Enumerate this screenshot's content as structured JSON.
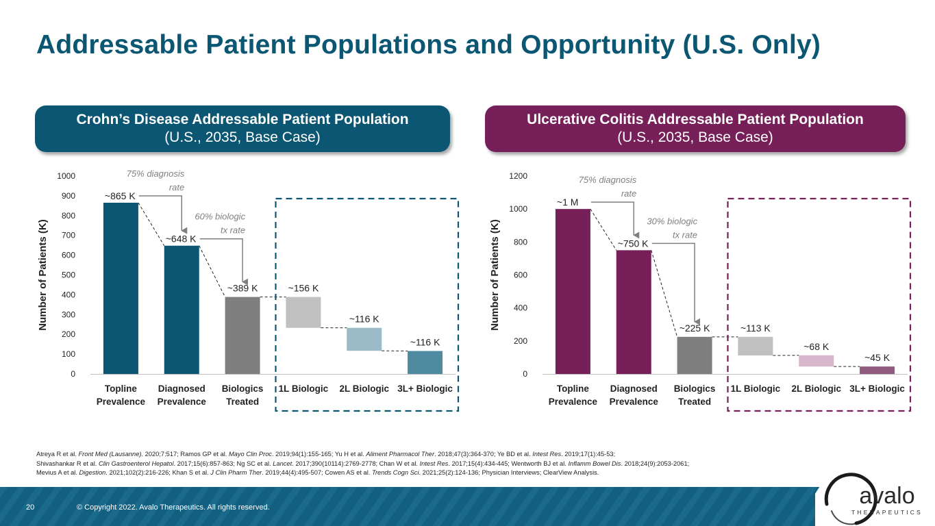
{
  "title": "Addressable Patient Populations and Opportunity (U.S. Only)",
  "colors": {
    "title": "#0b5773",
    "crohns": "#0b5773",
    "uc": "#761f58",
    "gray_dark": "#7f7f7f",
    "gray_light": "#c0c0c0",
    "annotation": "#7f7f7f",
    "footer": "#135f80"
  },
  "banners": {
    "crohns": {
      "title": "Crohn’s Disease Addressable Patient Population",
      "subtitle": "(U.S., 2035, Base Case)"
    },
    "uc": {
      "title": "Ulcerative Colitis Addressable Patient Population",
      "subtitle": "(U.S., 2035, Base Case)"
    }
  },
  "chart_data": [
    {
      "type": "bar",
      "subtype": "waterfall",
      "title": "Crohn’s Disease Addressable Patient Population (U.S., 2035, Base Case)",
      "ylabel": "Number of Patients (K)",
      "ylim": [
        0,
        1000
      ],
      "yticks": [
        0,
        100,
        200,
        300,
        400,
        500,
        600,
        700,
        800,
        900,
        1000
      ],
      "grid": false,
      "categories": [
        [
          "Topline",
          "Prevalence"
        ],
        [
          "Diagnosed",
          "Prevalence"
        ],
        [
          "Biologics",
          "Treated"
        ],
        [
          "1L Biologic"
        ],
        [
          "2L Biologic"
        ],
        [
          "3L+ Biologic"
        ]
      ],
      "bars": [
        {
          "bottom": 0,
          "top": 865,
          "color": "#0b5773"
        },
        {
          "bottom": 0,
          "top": 648,
          "color": "#0b5773"
        },
        {
          "bottom": 0,
          "top": 389,
          "color": "#7f7f7f"
        },
        {
          "bottom": 233,
          "top": 389,
          "color": "#c0c0c0"
        },
        {
          "bottom": 117,
          "top": 233,
          "color": "#9bbac7"
        },
        {
          "bottom": 0,
          "top": 116,
          "color": "#4f8aa0"
        }
      ],
      "value_labels": [
        "~865 K",
        "~648 K",
        "~389 K",
        "~156 K",
        "~116 K",
        "~116 K"
      ],
      "annotations": [
        {
          "from_bar": 0,
          "to_bar": 1,
          "lines": [
            "75% diagnosis",
            "rate"
          ]
        },
        {
          "from_bar": 1,
          "to_bar": 2,
          "lines": [
            "60% biologic",
            "tx rate"
          ]
        }
      ],
      "highlight_box": {
        "bars": [
          3,
          4,
          5
        ],
        "color": "#0b5773"
      }
    },
    {
      "type": "bar",
      "subtype": "waterfall",
      "title": "Ulcerative Colitis Addressable Patient Population (U.S., 2035, Base Case)",
      "ylabel": "Number of Patients (K)",
      "ylim": [
        0,
        1200
      ],
      "yticks": [
        0,
        200,
        400,
        600,
        800,
        1000,
        1200
      ],
      "grid": false,
      "categories": [
        [
          "Topline",
          "Prevalence"
        ],
        [
          "Diagnosed",
          "Prevalence"
        ],
        [
          "Biologics",
          "Treated"
        ],
        [
          "1L Biologic"
        ],
        [
          "2L Biologic"
        ],
        [
          "3L+ Biologic"
        ]
      ],
      "bars": [
        {
          "bottom": 0,
          "top": 1000,
          "color": "#761f58"
        },
        {
          "bottom": 0,
          "top": 750,
          "color": "#761f58"
        },
        {
          "bottom": 0,
          "top": 225,
          "color": "#7f7f7f"
        },
        {
          "bottom": 112,
          "top": 225,
          "color": "#c0c0c0"
        },
        {
          "bottom": 45,
          "top": 113,
          "color": "#d8b6cb"
        },
        {
          "bottom": 0,
          "top": 45,
          "color": "#915b80"
        }
      ],
      "value_labels": [
        "~1 M",
        "~750 K",
        "~225 K",
        "~113 K",
        "~68 K",
        "~45 K"
      ],
      "annotations": [
        {
          "from_bar": 0,
          "to_bar": 1,
          "lines": [
            "75% diagnosis",
            "rate"
          ]
        },
        {
          "from_bar": 1,
          "to_bar": 2,
          "lines": [
            "30% biologic",
            "tx rate"
          ]
        }
      ],
      "highlight_box": {
        "bars": [
          3,
          4,
          5
        ],
        "color": "#761f58"
      }
    }
  ],
  "references": [
    [
      {
        "t": "Atreya R et al. "
      },
      {
        "t": "Front Med (Lausanne).",
        "i": true
      },
      {
        "t": " 2020;7:517; Ramos GP et al. "
      },
      {
        "t": "Mayo Clin Proc",
        "i": true
      },
      {
        "t": ". 2019;94(1):155-165; Yu H et al. "
      },
      {
        "t": "Aliment Pharmacol Ther",
        "i": true
      },
      {
        "t": ". 2018;47(3):364-370; Ye BD et al. "
      },
      {
        "t": "Intest Res",
        "i": true
      },
      {
        "t": ". 2019;17(1):45-53;"
      }
    ],
    [
      {
        "t": "Shivashankar R et al. "
      },
      {
        "t": "Clin Gastroenterol Hepatol",
        "i": true
      },
      {
        "t": ". 2017;15(6):857-863; Ng SC et al. "
      },
      {
        "t": "Lancet",
        "i": true
      },
      {
        "t": ". 2017;390(10114):2769-2778; Chan W et al. "
      },
      {
        "t": "Intest Res",
        "i": true
      },
      {
        "t": ". 2017;15(4):434-445; Wentworth BJ et al. "
      },
      {
        "t": "Inflamm Bowel Dis",
        "i": true
      },
      {
        "t": ". 2018;24(9):2053-2061;"
      }
    ],
    [
      {
        "t": "Mevius A et al. "
      },
      {
        "t": "Digestion",
        "i": true
      },
      {
        "t": ". 2021;102(2):216-226; Khan S et al. "
      },
      {
        "t": "J Clin Pharm Ther",
        "i": true
      },
      {
        "t": ". 2019;44(4):495-507; Cowen AS et al. "
      },
      {
        "t": "Trends Cogn Sci",
        "i": true
      },
      {
        "t": ". 2021;25(2):124-136; Physician Interviews; ClearView Analysis."
      }
    ]
  ],
  "footer": {
    "page_number": "20",
    "copyright": "© Copyright 2022. Avalo Therapeutics. All rights reserved."
  },
  "logo": {
    "name": "avalo",
    "tagline": "THERAPEUTICS"
  }
}
